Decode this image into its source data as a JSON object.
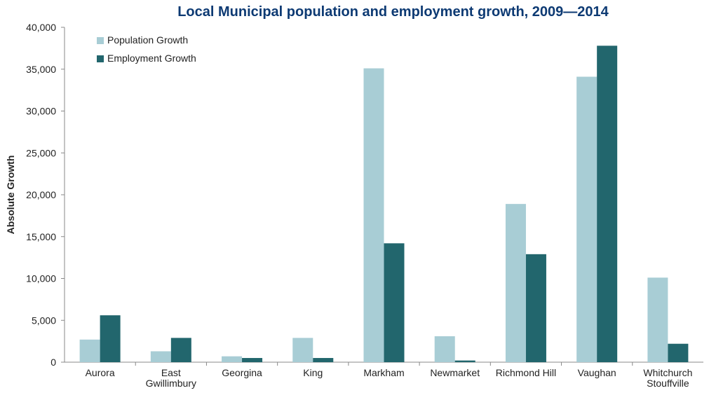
{
  "chart_data": {
    "type": "bar",
    "title": "Local Municipal population and employment growth, 2009—2014",
    "xlabel": "",
    "ylabel": "Absolute Growth",
    "ylim": [
      0,
      40000
    ],
    "yticks": [
      "0",
      "5,000",
      "10,000",
      "15,000",
      "20,000",
      "25,000",
      "30,000",
      "35,000",
      "40,000"
    ],
    "categories": [
      [
        "Aurora"
      ],
      [
        "East",
        "Gwillimbury"
      ],
      [
        "Georgina"
      ],
      [
        "King"
      ],
      [
        "Markham"
      ],
      [
        "Newmarket"
      ],
      [
        "Richmond Hill"
      ],
      [
        "Vaughan"
      ],
      [
        "Whitchurch",
        "Stouffville"
      ]
    ],
    "series": [
      {
        "name": "Population Growth",
        "color": "#a8cdd5",
        "values": [
          2700,
          1300,
          700,
          2900,
          35100,
          3100,
          18900,
          34100,
          10100
        ]
      },
      {
        "name": "Employment Growth",
        "color": "#22666d",
        "values": [
          5600,
          2900,
          500,
          500,
          14200,
          200,
          12900,
          37800,
          2200
        ]
      }
    ],
    "grid": false,
    "legend_position": "top-left"
  }
}
